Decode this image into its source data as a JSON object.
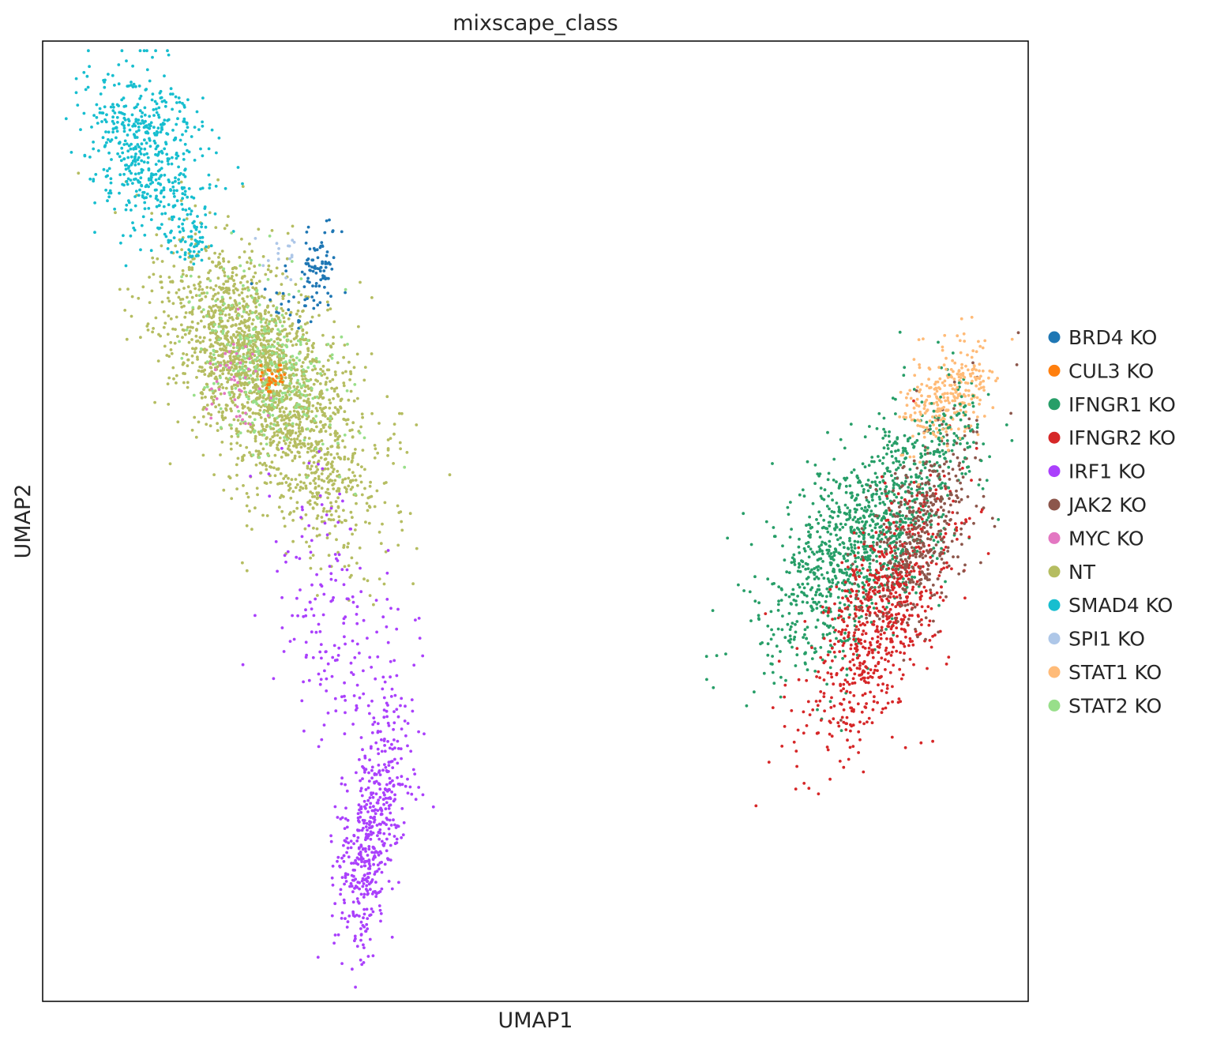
{
  "chart_data": {
    "type": "scatter",
    "title": "mixscape_class",
    "xlabel": "UMAP1",
    "ylabel": "UMAP2",
    "xlim": [
      0,
      100
    ],
    "ylim": [
      0,
      100
    ],
    "x_ticks_shown": false,
    "y_ticks_shown": false,
    "grid": false,
    "legend_position": "right",
    "categories": [
      {
        "name": "BRD4 KO",
        "color": "#1f77b4"
      },
      {
        "name": "CUL3 KO",
        "color": "#ff7f0e"
      },
      {
        "name": "IFNGR1 KO",
        "color": "#279e68"
      },
      {
        "name": "IFNGR2 KO",
        "color": "#d62728"
      },
      {
        "name": "IRF1 KO",
        "color": "#aa40fc"
      },
      {
        "name": "JAK2 KO",
        "color": "#8c564b"
      },
      {
        "name": "MYC KO",
        "color": "#e377c2"
      },
      {
        "name": "NT",
        "color": "#b5bd61"
      },
      {
        "name": "SMAD4 KO",
        "color": "#17becf"
      },
      {
        "name": "SPI1 KO",
        "color": "#aec7e8"
      },
      {
        "name": "STAT1 KO",
        "color": "#ffbb78"
      },
      {
        "name": "STAT2 KO",
        "color": "#98df8a"
      }
    ],
    "clusters": [
      {
        "category": "NT",
        "cx": 22.0,
        "cy": 66.0,
        "sx": 4.6,
        "sy": 6.2,
        "rho": -0.5,
        "n": 1800
      },
      {
        "category": "NT",
        "cx": 28.0,
        "cy": 55.0,
        "sx": 4.0,
        "sy": 5.0,
        "rho": -0.3,
        "n": 300
      },
      {
        "category": "SMAD4 KO",
        "cx": 10.5,
        "cy": 88.5,
        "sx": 3.2,
        "sy": 4.2,
        "rho": -0.25,
        "n": 520
      },
      {
        "category": "SMAD4 KO",
        "cx": 15.0,
        "cy": 79.5,
        "sx": 1.2,
        "sy": 1.8,
        "rho": -0.3,
        "n": 70
      },
      {
        "category": "BRD4 KO",
        "cx": 28.0,
        "cy": 77.0,
        "sx": 0.8,
        "sy": 1.7,
        "rho": 0.0,
        "n": 80
      },
      {
        "category": "BRD4 KO",
        "cx": 25.5,
        "cy": 72.5,
        "sx": 1.4,
        "sy": 1.6,
        "rho": 0.0,
        "n": 25
      },
      {
        "category": "SPI1 KO",
        "cx": 24.0,
        "cy": 78.3,
        "sx": 0.9,
        "sy": 1.2,
        "rho": 0.0,
        "n": 16
      },
      {
        "category": "STAT2 KO",
        "cx": 22.5,
        "cy": 66.0,
        "sx": 3.6,
        "sy": 4.8,
        "rho": -0.4,
        "n": 320
      },
      {
        "category": "MYC KO",
        "cx": 19.5,
        "cy": 64.0,
        "sx": 1.3,
        "sy": 2.8,
        "rho": 0.0,
        "n": 45
      },
      {
        "category": "CUL3 KO",
        "cx": 23.3,
        "cy": 64.8,
        "sx": 0.7,
        "sy": 0.9,
        "rho": 0.0,
        "n": 30
      },
      {
        "category": "IRF1 KO",
        "cx": 33.5,
        "cy": 18.0,
        "sx": 1.8,
        "sy": 6.5,
        "rho": 0.55,
        "n": 520
      },
      {
        "category": "IRF1 KO",
        "cx": 30.0,
        "cy": 40.0,
        "sx": 3.5,
        "sy": 7.0,
        "rho": -0.3,
        "n": 180
      },
      {
        "category": "IFNGR1 KO",
        "cx": 83.0,
        "cy": 48.0,
        "sx": 5.0,
        "sy": 6.5,
        "rho": 0.62,
        "n": 1100
      },
      {
        "category": "IFNGR2 KO",
        "cx": 85.0,
        "cy": 40.0,
        "sx": 3.8,
        "sy": 6.8,
        "rho": 0.65,
        "n": 750
      },
      {
        "category": "JAK2 KO",
        "cx": 89.0,
        "cy": 49.0,
        "sx": 3.0,
        "sy": 5.5,
        "rho": 0.5,
        "n": 420
      },
      {
        "category": "STAT1 KO",
        "cx": 91.5,
        "cy": 63.0,
        "sx": 2.3,
        "sy": 2.6,
        "rho": 0.4,
        "n": 280
      },
      {
        "category": "IFNGR1 KO",
        "cx": 92.0,
        "cy": 59.0,
        "sx": 1.6,
        "sy": 2.5,
        "rho": 0.0,
        "n": 70
      }
    ]
  }
}
